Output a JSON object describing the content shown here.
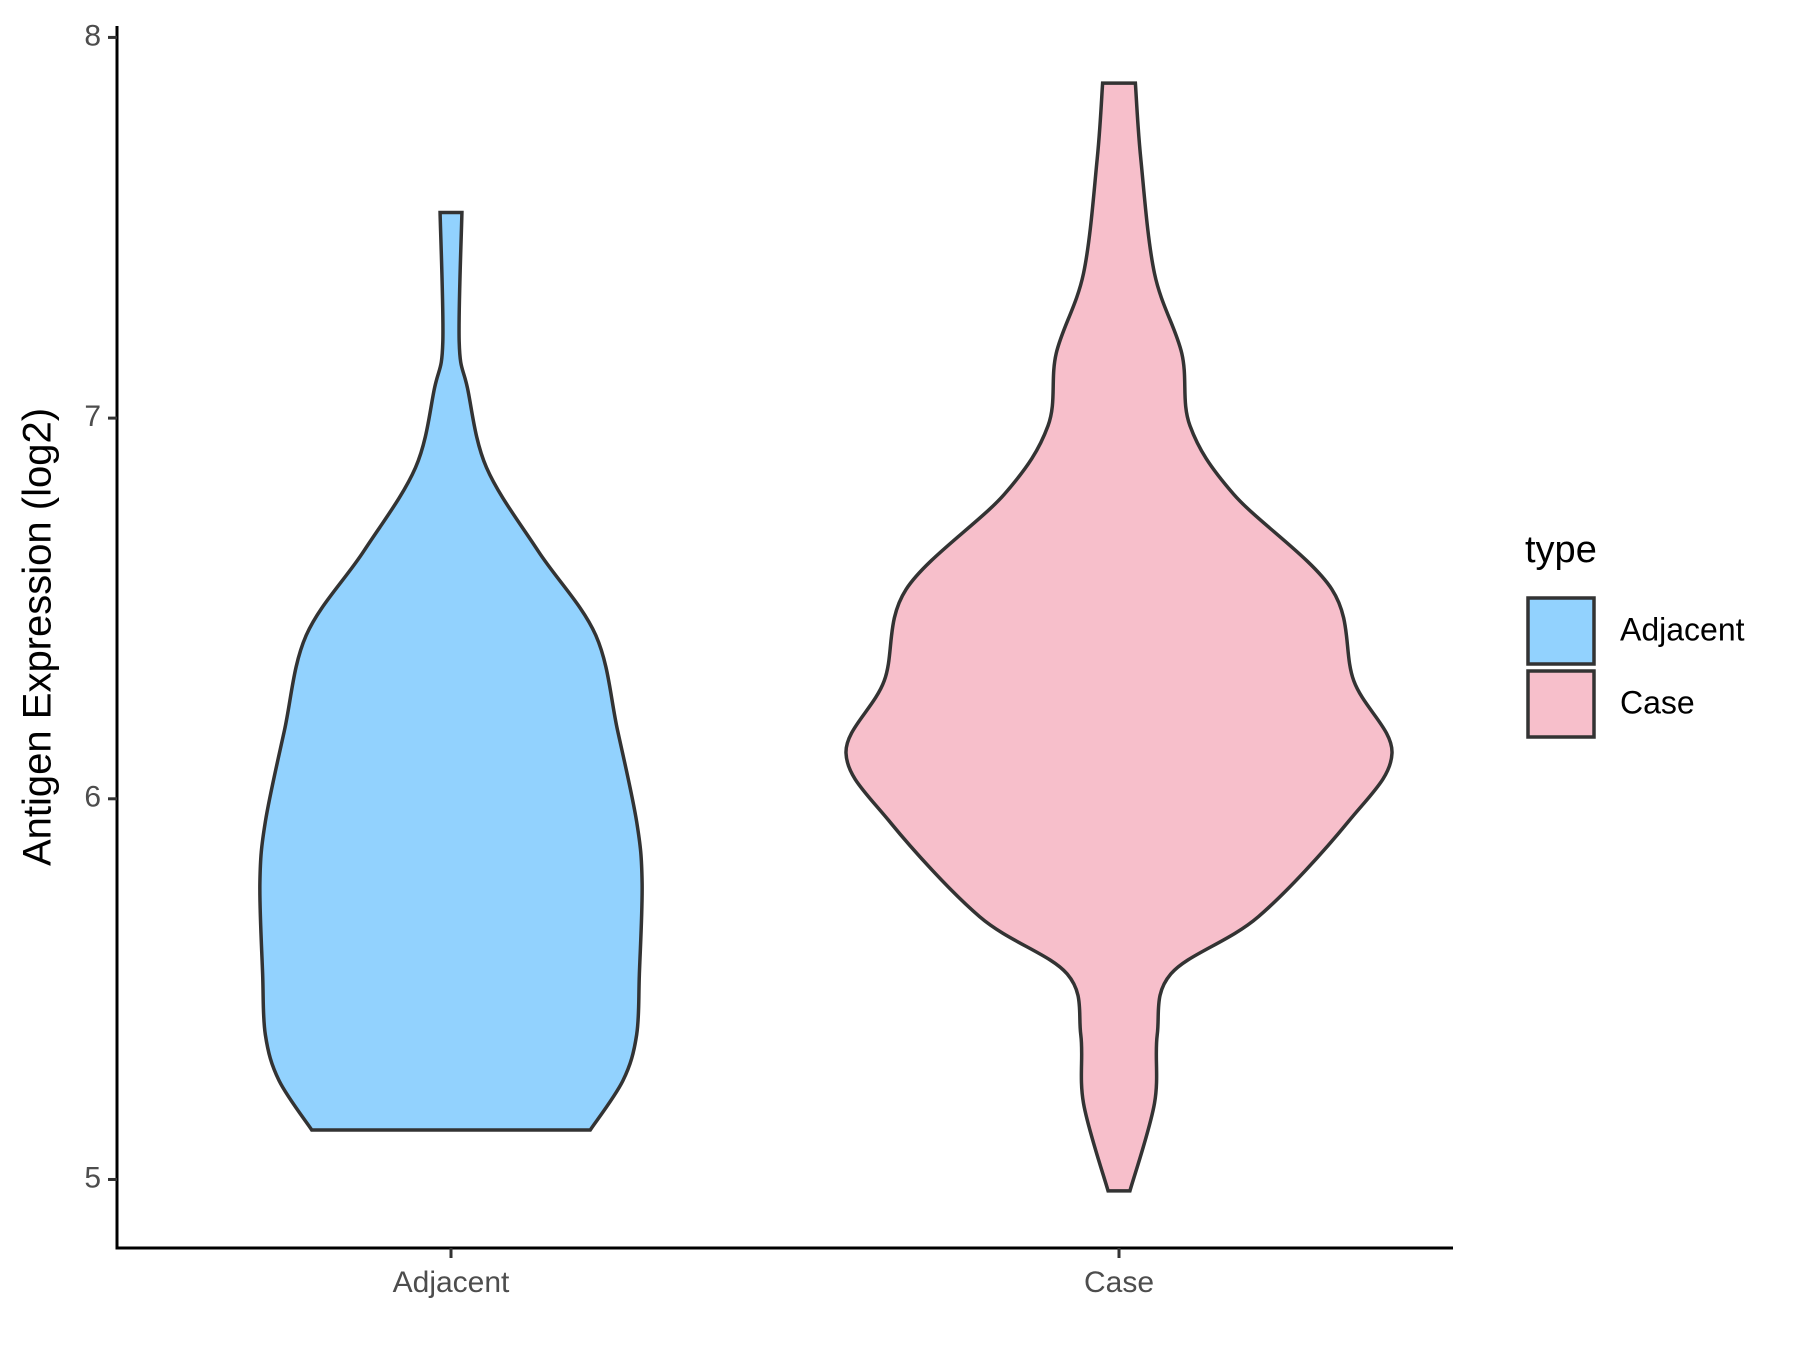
{
  "chart_data": {
    "type": "violin",
    "y_label": "Antigen Expression (log2)",
    "categories": [
      "Adjacent",
      "Case"
    ],
    "legend_title": "type",
    "series": [
      {
        "name": "Adjacent",
        "color": "#92d2fe",
        "y": [
          7.54,
          7.2,
          7.08,
          6.87,
          6.65,
          6.43,
          6.18,
          5.94,
          5.78,
          5.54,
          5.38,
          5.26,
          5.13
        ],
        "width": [
          0.04,
          0.03,
          0.06,
          0.13,
          0.32,
          0.53,
          0.61,
          0.68,
          0.7,
          0.69,
          0.68,
          0.63,
          0.51
        ]
      },
      {
        "name": "Case",
        "color": "#f7bfcb",
        "y": [
          7.88,
          7.68,
          7.38,
          7.17,
          6.98,
          6.8,
          6.55,
          6.31,
          6.12,
          5.94,
          5.69,
          5.54,
          5.38,
          5.2,
          4.97
        ],
        "width": [
          0.06,
          0.08,
          0.13,
          0.23,
          0.26,
          0.42,
          0.78,
          0.86,
          1,
          0.84,
          0.51,
          0.19,
          0.14,
          0.13,
          0.04
        ]
      }
    ],
    "ylim": [
      4.82,
      8.03
    ],
    "yticks": [
      5,
      6,
      7,
      8
    ],
    "legend": "right"
  }
}
